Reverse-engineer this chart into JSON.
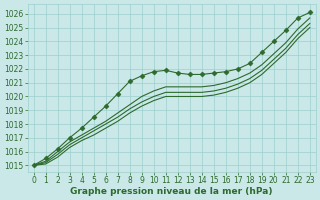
{
  "bg_color": "#cbe8e8",
  "grid_color": "#9ecfcf",
  "line_color": "#2d6a2d",
  "xlabel": "Graphe pression niveau de la mer (hPa)",
  "xlabel_color": "#2d6a2d",
  "ylim": [
    1014.5,
    1026.7
  ],
  "xlim": [
    -0.5,
    23.5
  ],
  "yticks": [
    1015,
    1016,
    1017,
    1018,
    1019,
    1020,
    1021,
    1022,
    1023,
    1024,
    1025,
    1026
  ],
  "xticks": [
    0,
    1,
    2,
    3,
    4,
    5,
    6,
    7,
    8,
    9,
    10,
    11,
    12,
    13,
    14,
    15,
    16,
    17,
    18,
    19,
    20,
    21,
    22,
    23
  ],
  "series": [
    [
      1015.0,
      1015.5,
      1016.2,
      1017.0,
      1017.7,
      1018.5,
      1019.3,
      1020.2,
      1021.1,
      1021.5,
      1021.8,
      1021.9,
      1021.7,
      1021.6,
      1021.6,
      1021.7,
      1021.8,
      1022.0,
      1022.4,
      1023.2,
      1024.0,
      1024.8,
      1025.7,
      1026.1
    ],
    [
      1015.0,
      1015.3,
      1016.0,
      1016.7,
      1017.2,
      1017.7,
      1018.2,
      1018.8,
      1019.4,
      1020.0,
      1020.4,
      1020.7,
      1020.7,
      1020.7,
      1020.7,
      1020.8,
      1021.0,
      1021.3,
      1021.7,
      1022.3,
      1023.1,
      1023.9,
      1024.9,
      1025.7
    ],
    [
      1015.0,
      1015.2,
      1015.8,
      1016.5,
      1017.0,
      1017.5,
      1018.0,
      1018.5,
      1019.1,
      1019.6,
      1020.0,
      1020.3,
      1020.3,
      1020.3,
      1020.3,
      1020.4,
      1020.6,
      1020.9,
      1021.3,
      1021.9,
      1022.7,
      1023.5,
      1024.5,
      1025.3
    ],
    [
      1015.0,
      1015.1,
      1015.6,
      1016.3,
      1016.8,
      1017.2,
      1017.7,
      1018.2,
      1018.8,
      1019.3,
      1019.7,
      1020.0,
      1020.0,
      1020.0,
      1020.0,
      1020.1,
      1020.3,
      1020.6,
      1021.0,
      1021.6,
      1022.4,
      1023.2,
      1024.2,
      1025.0
    ]
  ],
  "marker_indices": [
    0,
    1,
    2,
    3,
    4,
    5,
    6,
    7,
    8,
    9,
    10,
    11,
    12,
    13,
    14,
    15,
    16,
    17,
    18,
    19,
    20,
    21,
    22,
    23
  ],
  "marker_style": "D",
  "marker_size": 2.5,
  "linewidth": 0.8,
  "tick_fontsize": 5.5,
  "xlabel_fontsize": 6.5
}
